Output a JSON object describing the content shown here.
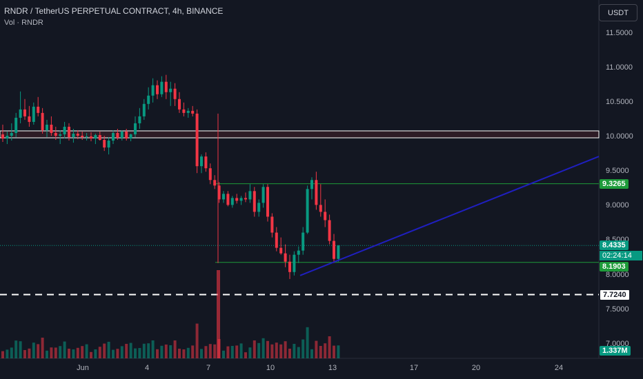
{
  "header": {
    "symbol_title": "RNDR / TetherUS PERPETUAL CONTRACT, 4h, BINANCE",
    "volume_label": "Vol · RNDR"
  },
  "currency_button": "USDT",
  "price_axis": {
    "ticks": [
      "11.5000",
      "11.0000",
      "10.5000",
      "10.0000",
      "9.5000",
      "9.0000",
      "8.5000",
      "8.0000",
      "7.5000",
      "7.0000"
    ]
  },
  "time_axis": {
    "ticks": [
      "Jun",
      "4",
      "7",
      "10",
      "13",
      "17",
      "20",
      "24"
    ]
  },
  "price_labels": {
    "resistance": "9.3265",
    "last_price": "8.4335",
    "countdown": "02:24:14",
    "support": "8.1903",
    "dashed_level": "7.7240",
    "volume": "1.337M"
  },
  "colors": {
    "background": "#131722",
    "up": "#089981",
    "down": "#f23645",
    "horizontal_line": "#1e9b3a",
    "trendline": "#1f1fbf",
    "zone": "#ffffff"
  },
  "chart_data": {
    "type": "candlestick",
    "levels": [
      10.0,
      9.3265,
      8.1903,
      7.724
    ],
    "last_price": 8.4335,
    "trendline": [
      [
        8.0,
        "Jun 12"
      ],
      [
        9.72,
        "Jun 25"
      ]
    ],
    "candles_ohlc": [
      [
        10.04,
        10.18,
        9.93,
        9.98
      ],
      [
        9.98,
        10.08,
        9.9,
        10.02
      ],
      [
        10.02,
        10.2,
        9.95,
        10.06
      ],
      [
        10.06,
        10.35,
        10.0,
        10.28
      ],
      [
        10.28,
        10.66,
        10.2,
        10.4
      ],
      [
        10.4,
        10.55,
        10.25,
        10.3
      ],
      [
        10.3,
        10.45,
        10.15,
        10.22
      ],
      [
        10.22,
        10.5,
        10.18,
        10.44
      ],
      [
        10.44,
        10.58,
        10.3,
        10.35
      ],
      [
        10.35,
        10.42,
        10.05,
        10.1
      ],
      [
        10.1,
        10.25,
        10.0,
        10.18
      ],
      [
        10.18,
        10.3,
        10.02,
        10.06
      ],
      [
        10.06,
        10.15,
        9.96,
        10.02
      ],
      [
        10.02,
        10.1,
        9.9,
        10.04
      ],
      [
        10.04,
        10.22,
        9.98,
        10.15
      ],
      [
        10.15,
        10.2,
        9.95,
        10.0
      ],
      [
        10.0,
        10.12,
        9.92,
        10.05
      ],
      [
        10.05,
        10.1,
        9.97,
        10.02
      ],
      [
        10.02,
        10.08,
        9.96,
        10.0
      ],
      [
        10.0,
        10.06,
        9.95,
        10.01
      ],
      [
        10.01,
        10.07,
        9.94,
        9.98
      ],
      [
        9.98,
        10.05,
        9.9,
        10.03
      ],
      [
        10.03,
        10.08,
        9.95,
        9.96
      ],
      [
        9.96,
        10.02,
        9.8,
        9.85
      ],
      [
        9.85,
        10.0,
        9.75,
        9.95
      ],
      [
        9.95,
        10.1,
        9.9,
        10.06
      ],
      [
        10.06,
        10.12,
        9.96,
        9.99
      ],
      [
        9.99,
        10.1,
        9.95,
        10.08
      ],
      [
        10.08,
        10.12,
        9.95,
        9.98
      ],
      [
        9.98,
        10.05,
        9.94,
        10.04
      ],
      [
        10.04,
        10.3,
        10.0,
        10.2
      ],
      [
        10.2,
        10.42,
        10.12,
        10.3
      ],
      [
        10.3,
        10.55,
        10.25,
        10.48
      ],
      [
        10.48,
        10.72,
        10.4,
        10.6
      ],
      [
        10.6,
        10.85,
        10.5,
        10.75
      ],
      [
        10.75,
        10.82,
        10.55,
        10.62
      ],
      [
        10.62,
        10.88,
        10.58,
        10.8
      ],
      [
        10.8,
        10.9,
        10.55,
        10.65
      ],
      [
        10.65,
        10.8,
        10.45,
        10.7
      ],
      [
        10.7,
        10.78,
        10.45,
        10.55
      ],
      [
        10.55,
        10.65,
        10.35,
        10.4
      ],
      [
        10.4,
        10.5,
        10.3,
        10.35
      ],
      [
        10.35,
        10.42,
        10.28,
        10.38
      ],
      [
        10.38,
        10.45,
        10.3,
        10.34
      ],
      [
        10.34,
        10.4,
        9.48,
        9.58
      ],
      [
        9.58,
        9.75,
        9.48,
        9.72
      ],
      [
        9.72,
        9.78,
        9.5,
        9.55
      ],
      [
        9.55,
        9.62,
        9.32,
        9.38
      ],
      [
        9.38,
        9.45,
        9.25,
        9.3
      ],
      [
        9.3,
        9.35,
        9.05,
        9.1
      ],
      [
        9.1,
        9.22,
        9.05,
        9.18
      ],
      [
        9.18,
        9.22,
        9.0,
        9.02
      ],
      [
        9.02,
        9.15,
        8.98,
        9.12
      ],
      [
        9.12,
        9.18,
        9.04,
        9.08
      ],
      [
        9.08,
        9.15,
        9.02,
        9.12
      ],
      [
        9.12,
        9.2,
        9.06,
        9.1
      ],
      [
        9.1,
        9.32,
        9.05,
        9.22
      ],
      [
        9.22,
        9.28,
        8.85,
        8.92
      ],
      [
        8.92,
        9.1,
        8.85,
        9.05
      ],
      [
        9.05,
        9.32,
        8.98,
        9.28
      ],
      [
        9.28,
        9.32,
        8.78,
        8.85
      ],
      [
        8.85,
        8.9,
        8.55,
        8.62
      ],
      [
        8.62,
        8.7,
        8.35,
        8.4
      ],
      [
        8.4,
        8.55,
        8.3,
        8.32
      ],
      [
        8.32,
        8.45,
        8.12,
        8.2
      ],
      [
        8.2,
        8.3,
        7.95,
        8.05
      ],
      [
        8.05,
        8.35,
        8.0,
        8.3
      ],
      [
        8.3,
        8.42,
        8.18,
        8.36
      ],
      [
        8.36,
        8.7,
        8.3,
        8.62
      ],
      [
        8.62,
        9.3,
        8.6,
        9.25
      ],
      [
        9.25,
        9.42,
        9.1,
        9.38
      ],
      [
        9.38,
        9.5,
        8.95,
        9.02
      ],
      [
        9.02,
        9.32,
        8.85,
        8.92
      ],
      [
        8.92,
        9.1,
        8.7,
        8.8
      ],
      [
        8.8,
        8.88,
        8.45,
        8.5
      ],
      [
        8.5,
        8.6,
        8.18,
        8.24
      ],
      [
        8.24,
        8.44,
        8.2,
        8.4335
      ]
    ]
  }
}
